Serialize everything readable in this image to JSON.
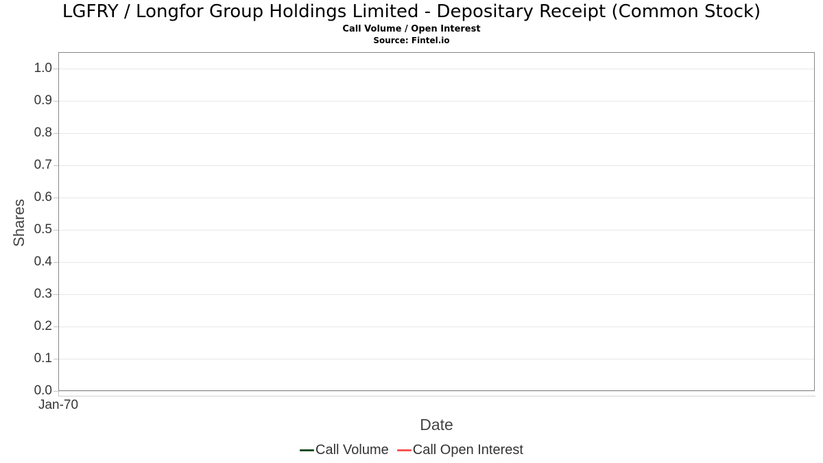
{
  "chart_data": {
    "type": "line",
    "title": "LGFRY / Longfor Group Holdings Limited - Depositary Receipt (Common Stock)",
    "subtitle": "Call Volume / Open Interest",
    "source": "Source: Fintel.io",
    "xlabel": "Date",
    "ylabel": "Shares",
    "x_ticks": [
      "Jan-70"
    ],
    "y_ticks": [
      "0.0",
      "0.1",
      "0.2",
      "0.3",
      "0.4",
      "0.5",
      "0.6",
      "0.7",
      "0.8",
      "0.9",
      "1.0"
    ],
    "ylim": [
      0.0,
      1.05
    ],
    "grid": true,
    "legend_position": "bottom",
    "series": [
      {
        "name": "Call Volume",
        "color": "#1f4c28",
        "x": [],
        "values": []
      },
      {
        "name": "Call Open Interest",
        "color": "#f75555",
        "x": [],
        "values": []
      }
    ]
  },
  "colors": {
    "plot_border": "#878787",
    "gridline": "#e7e7e7",
    "axis_line": "#cfcfcf",
    "tick_label": "#333333",
    "axis_title": "#444444"
  }
}
